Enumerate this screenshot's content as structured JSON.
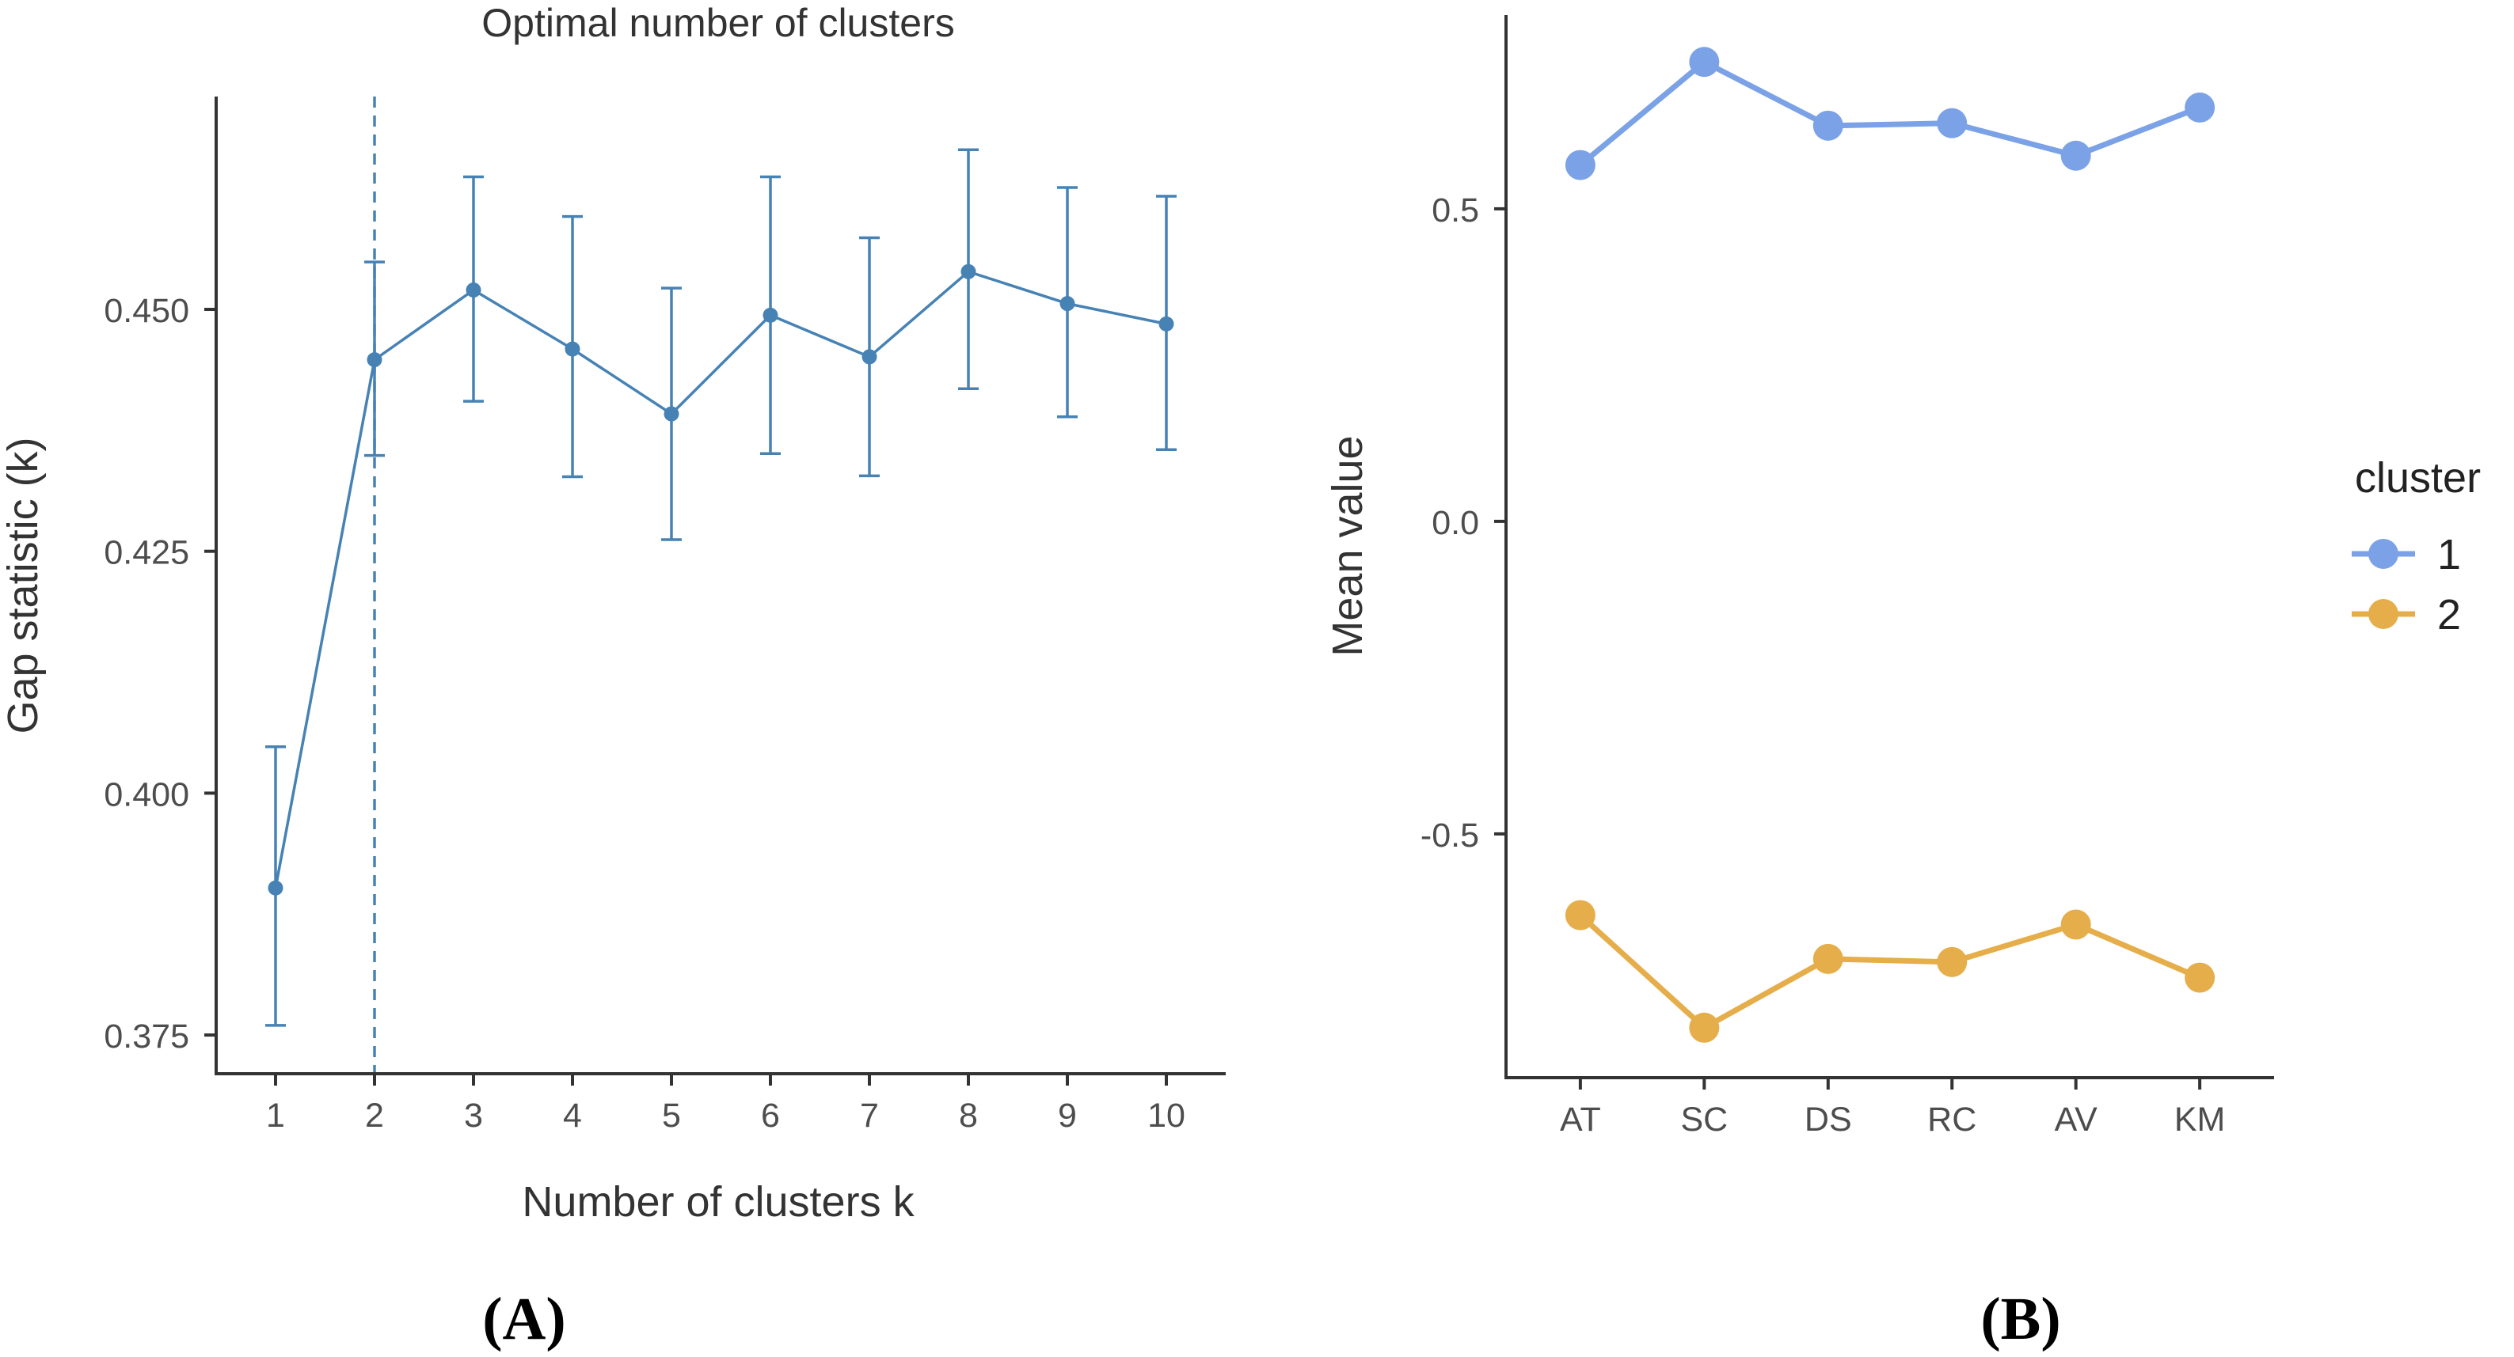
{
  "chart_data": [
    {
      "type": "line",
      "title": "Optimal number of clusters",
      "xlabel": "Number of clusters k",
      "ylabel": "Gap statistic (k)",
      "x": [
        1,
        2,
        3,
        4,
        5,
        6,
        7,
        8,
        9,
        10
      ],
      "x_tick_labels": [
        "1",
        "2",
        "3",
        "4",
        "5",
        "6",
        "7",
        "8",
        "9",
        "10"
      ],
      "y_ticks": [
        0.375,
        0.4,
        0.425,
        0.45
      ],
      "y_tick_labels": [
        "0.375",
        "0.400",
        "0.425",
        "0.450"
      ],
      "ylim": [
        0.371,
        0.472
      ],
      "xlim": [
        0.4,
        10.6
      ],
      "series": [
        {
          "values": [
            0.3902,
            0.4448,
            0.452,
            0.4459,
            0.4392,
            0.4494,
            0.4451,
            0.4539,
            0.4506,
            0.4485
          ],
          "error_lower": [
            0.376,
            0.4349,
            0.4405,
            0.4327,
            0.4262,
            0.4351,
            0.4328,
            0.4418,
            0.4389,
            0.4355
          ],
          "error_upper": [
            0.4048,
            0.4549,
            0.4637,
            0.4596,
            0.4522,
            0.4637,
            0.4574,
            0.4665,
            0.4626,
            0.4617
          ]
        }
      ],
      "optimal_k": 2,
      "grid": false,
      "color": "#4682B4",
      "panel_label": "(A)"
    },
    {
      "type": "line",
      "title": "",
      "xlabel": "",
      "ylabel": "Mean value",
      "categories": [
        "AT",
        "SC",
        "DS",
        "RC",
        "AV",
        "KM"
      ],
      "y_ticks": [
        -0.5,
        0.0,
        0.5
      ],
      "y_tick_labels": [
        "-0.5",
        "0.0",
        "0.5"
      ],
      "ylim": [
        -0.89,
        0.81
      ],
      "legend_title": "cluster",
      "legend_position": "right",
      "series": [
        {
          "name": "1",
          "color": "#7BA2E6",
          "values": [
            0.57,
            0.735,
            0.633,
            0.637,
            0.585,
            0.662
          ]
        },
        {
          "name": "2",
          "color": "#E6AE4A",
          "values": [
            -0.63,
            -0.81,
            -0.7,
            -0.705,
            -0.645,
            -0.73
          ]
        }
      ],
      "grid": false,
      "panel_label": "(B)"
    }
  ]
}
